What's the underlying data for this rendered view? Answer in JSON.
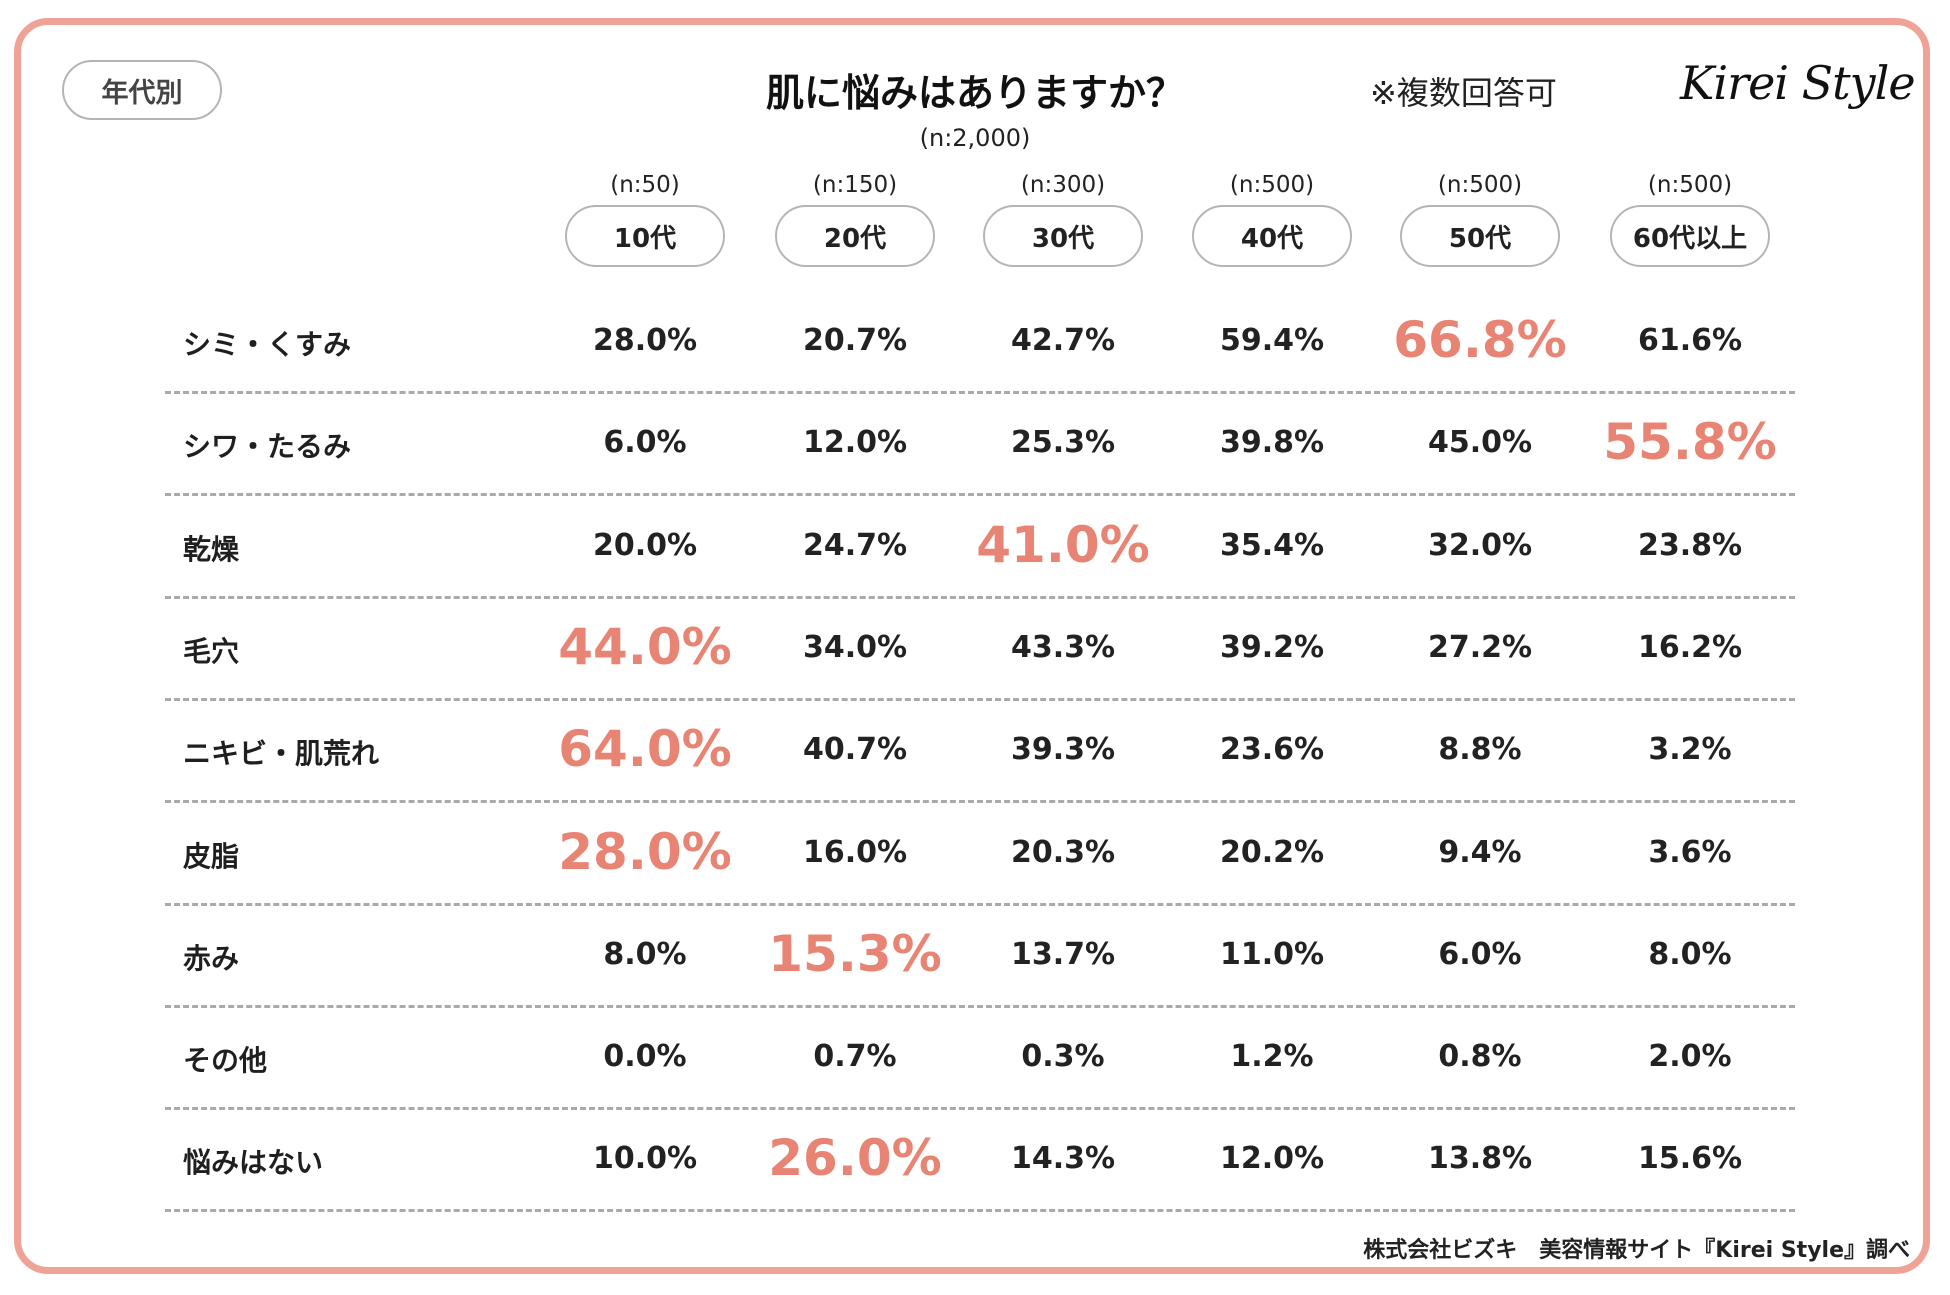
{
  "filter": {
    "label": "年代別"
  },
  "header": {
    "title": "肌に悩みはありますか？",
    "total_n": "(n:2,000)",
    "note": "※複数回答可",
    "logo": "Kirei Style"
  },
  "chart_data": {
    "type": "table",
    "title": "肌に悩みはありますか？",
    "columns": [
      {
        "label": "10代",
        "n": "(n:50)"
      },
      {
        "label": "20代",
        "n": "(n:150)"
      },
      {
        "label": "30代",
        "n": "(n:300)"
      },
      {
        "label": "40代",
        "n": "(n:500)"
      },
      {
        "label": "50代",
        "n": "(n:500)"
      },
      {
        "label": "60代以上",
        "n": "(n:500)"
      }
    ],
    "rows": [
      {
        "label": "シミ・くすみ",
        "values": [
          "28.0%",
          "20.7%",
          "42.7%",
          "59.4%",
          "66.8%",
          "61.6%"
        ],
        "highlight": 4
      },
      {
        "label": "シワ・たるみ",
        "values": [
          "6.0%",
          "12.0%",
          "25.3%",
          "39.8%",
          "45.0%",
          "55.8%"
        ],
        "highlight": 5
      },
      {
        "label": "乾燥",
        "values": [
          "20.0%",
          "24.7%",
          "41.0%",
          "35.4%",
          "32.0%",
          "23.8%"
        ],
        "highlight": 2
      },
      {
        "label": "毛穴",
        "values": [
          "44.0%",
          "34.0%",
          "43.3%",
          "39.2%",
          "27.2%",
          "16.2%"
        ],
        "highlight": 0
      },
      {
        "label": "ニキビ・肌荒れ",
        "values": [
          "64.0%",
          "40.7%",
          "39.3%",
          "23.6%",
          "8.8%",
          "3.2%"
        ],
        "highlight": 0
      },
      {
        "label": "皮脂",
        "values": [
          "28.0%",
          "16.0%",
          "20.3%",
          "20.2%",
          "9.4%",
          "3.6%"
        ],
        "highlight": 0
      },
      {
        "label": "赤み",
        "values": [
          "8.0%",
          "15.3%",
          "13.7%",
          "11.0%",
          "6.0%",
          "8.0%"
        ],
        "highlight": 1
      },
      {
        "label": "その他",
        "values": [
          "0.0%",
          "0.7%",
          "0.3%",
          "1.2%",
          "0.8%",
          "2.0%"
        ],
        "highlight": -1
      },
      {
        "label": "悩みはない",
        "values": [
          "10.0%",
          "26.0%",
          "14.3%",
          "12.0%",
          "13.8%",
          "15.6%"
        ],
        "highlight": 1
      }
    ]
  },
  "footer": {
    "source": "株式会社ビズキ　美容情報サイト『Kirei Style』調べ"
  },
  "colors": {
    "accent": "#e88474",
    "frame": "#eea396",
    "divider": "#aaaaaa"
  }
}
